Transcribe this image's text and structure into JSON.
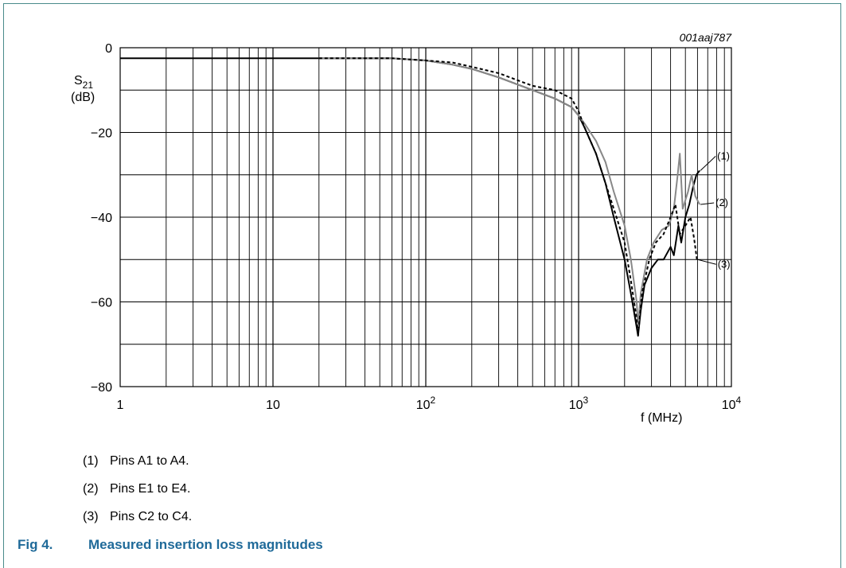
{
  "chart_data": {
    "type": "line",
    "code": "001aaj787",
    "ylabel": "S",
    "ylabel_sub": "21",
    "yunit": "(dB)",
    "xlabel": "f (MHz)",
    "xscale": "log",
    "xlim": [
      1,
      10000
    ],
    "ylim": [
      -80,
      0
    ],
    "yticks": [
      0,
      -20,
      -40,
      -60,
      -80
    ],
    "ytick_labels": [
      "0",
      "−20",
      "−40",
      "−60",
      "−80"
    ],
    "xticks": [
      1,
      10,
      100,
      1000,
      10000
    ],
    "xtick_labels": [
      {
        "base": "1",
        "exp": ""
      },
      {
        "base": "10",
        "exp": ""
      },
      {
        "base": "10",
        "exp": "2"
      },
      {
        "base": "10",
        "exp": "3"
      },
      {
        "base": "10",
        "exp": "4"
      }
    ],
    "grid": true,
    "series": [
      {
        "name": "(1)",
        "color": "#000000",
        "dash": "solid",
        "points": [
          [
            1,
            -2.5
          ],
          [
            10,
            -2.5
          ],
          [
            30,
            -2.5
          ],
          [
            60,
            -2.5
          ],
          [
            100,
            -3
          ],
          [
            150,
            -4
          ],
          [
            200,
            -5
          ],
          [
            300,
            -7
          ],
          [
            500,
            -10
          ],
          [
            700,
            -12
          ],
          [
            900,
            -14
          ],
          [
            1000,
            -16
          ],
          [
            1100,
            -19
          ],
          [
            1300,
            -25
          ],
          [
            1500,
            -32
          ],
          [
            1700,
            -40
          ],
          [
            2000,
            -50
          ],
          [
            2200,
            -58
          ],
          [
            2400,
            -66
          ],
          [
            2450,
            -68
          ],
          [
            2550,
            -62
          ],
          [
            2700,
            -56
          ],
          [
            3000,
            -52
          ],
          [
            3300,
            -50
          ],
          [
            3600,
            -50
          ],
          [
            4000,
            -47
          ],
          [
            4200,
            -49
          ],
          [
            4500,
            -42
          ],
          [
            4700,
            -46
          ],
          [
            5000,
            -40
          ],
          [
            5300,
            -37
          ],
          [
            5600,
            -33
          ],
          [
            5900,
            -30
          ],
          [
            6200,
            -29
          ]
        ]
      },
      {
        "name": "(2)",
        "color": "#888888",
        "dash": "solid",
        "points": [
          [
            20,
            -2.5
          ],
          [
            60,
            -2.5
          ],
          [
            100,
            -3
          ],
          [
            150,
            -4
          ],
          [
            200,
            -5
          ],
          [
            300,
            -7
          ],
          [
            500,
            -10
          ],
          [
            700,
            -12
          ],
          [
            900,
            -14
          ],
          [
            1000,
            -16
          ],
          [
            1100,
            -18
          ],
          [
            1300,
            -22
          ],
          [
            1500,
            -27
          ],
          [
            1700,
            -34
          ],
          [
            2000,
            -42
          ],
          [
            2200,
            -50
          ],
          [
            2400,
            -60
          ],
          [
            2450,
            -66
          ],
          [
            2550,
            -58
          ],
          [
            2800,
            -50
          ],
          [
            3100,
            -46
          ],
          [
            3500,
            -43
          ],
          [
            3900,
            -42
          ],
          [
            4200,
            -38
          ],
          [
            4450,
            -30
          ],
          [
            4600,
            -25
          ],
          [
            4800,
            -38
          ],
          [
            5200,
            -34
          ],
          [
            5500,
            -30
          ],
          [
            5800,
            -35
          ],
          [
            6200,
            -37
          ]
        ]
      },
      {
        "name": "(3)",
        "color": "#000000",
        "dash": "4,3",
        "points": [
          [
            20,
            -2.5
          ],
          [
            60,
            -2.5
          ],
          [
            100,
            -3
          ],
          [
            150,
            -3.5
          ],
          [
            200,
            -4.5
          ],
          [
            300,
            -6
          ],
          [
            500,
            -9
          ],
          [
            700,
            -10
          ],
          [
            900,
            -12
          ],
          [
            1000,
            -15
          ],
          [
            1100,
            -19
          ],
          [
            1300,
            -25
          ],
          [
            1500,
            -32
          ],
          [
            1700,
            -38
          ],
          [
            2000,
            -46
          ],
          [
            2200,
            -55
          ],
          [
            2400,
            -64
          ],
          [
            2450,
            -68
          ],
          [
            2600,
            -58
          ],
          [
            2900,
            -50
          ],
          [
            3200,
            -46
          ],
          [
            3600,
            -44
          ],
          [
            4000,
            -40
          ],
          [
            4300,
            -37
          ],
          [
            4600,
            -44
          ],
          [
            5000,
            -42
          ],
          [
            5400,
            -40
          ],
          [
            5700,
            -45
          ],
          [
            5950,
            -50
          ]
        ]
      }
    ],
    "annotations": [
      {
        "label": "(1)",
        "series": "(1)"
      },
      {
        "label": "(2)",
        "series": "(2)"
      },
      {
        "label": "(3)",
        "series": "(3)"
      }
    ]
  },
  "notes": [
    {
      "num": "(1)",
      "text": "Pins A1 to A4."
    },
    {
      "num": "(2)",
      "text": "Pins E1 to E4."
    },
    {
      "num": "(3)",
      "text": "Pins C2 to C4."
    }
  ],
  "caption": {
    "fig": "Fig 4.",
    "title": "Measured insertion loss magnitudes"
  },
  "colors": {
    "border": "#4a8a8a",
    "caption": "#1f6a99"
  }
}
